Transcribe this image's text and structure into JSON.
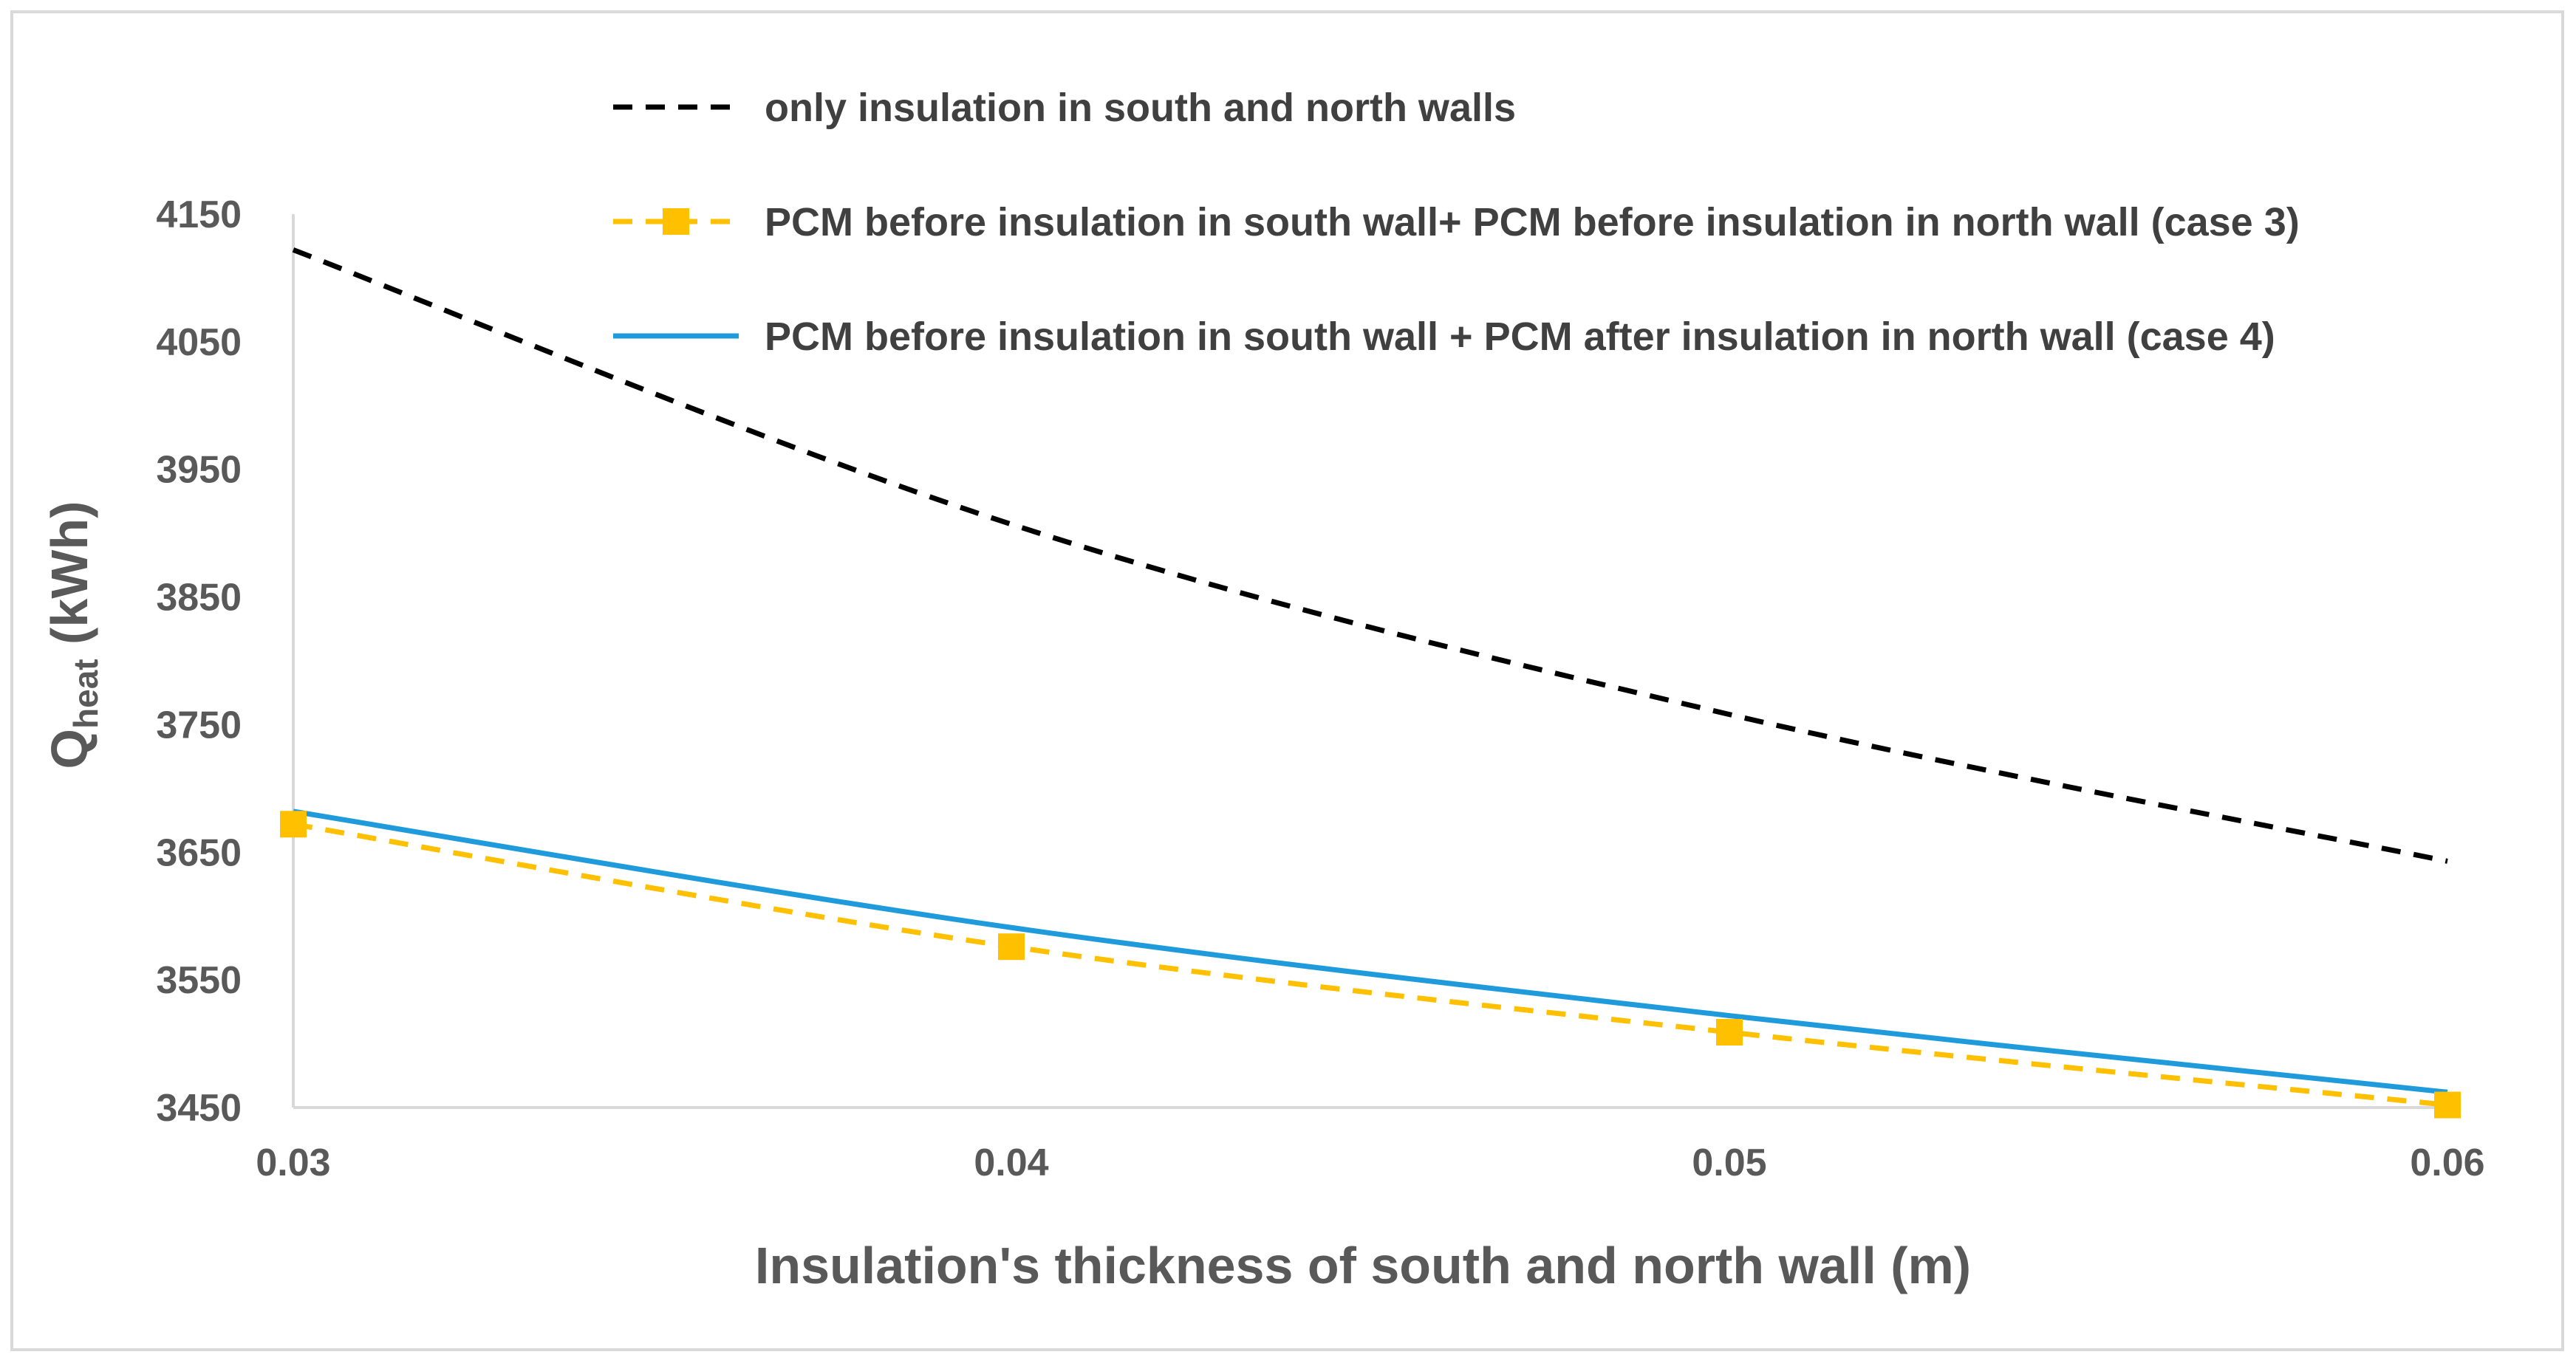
{
  "chart_data": {
    "type": "line",
    "title": "",
    "xlabel": "Insulation's thickness of south and north wall (m)",
    "ylabel_main": "Q",
    "ylabel_sub": "heat",
    "ylabel_unit": " (kWh)",
    "x": [
      0.03,
      0.04,
      0.05,
      0.06
    ],
    "x_tick_labels": [
      "0.03",
      "0.04",
      "0.05",
      "0.06"
    ],
    "xlim": [
      0.03,
      0.06
    ],
    "ylim": [
      3450,
      4150
    ],
    "y_ticks": [
      3450,
      3550,
      3650,
      3750,
      3850,
      3950,
      4050,
      4150
    ],
    "y_tick_labels": [
      "3450",
      "3550",
      "3650",
      "3750",
      "3850",
      "3950",
      "4050",
      "4150"
    ],
    "grid": false,
    "legend_position": "top",
    "series": [
      {
        "name": "only insulation in south and north walls",
        "values": [
          4122,
          3907,
          3758,
          3643
        ],
        "color": "#000000",
        "style": "dashed",
        "marker": "none"
      },
      {
        "name": "PCM before insulation in south wall+ PCM before insulation in north wall (case 3)",
        "values": [
          3672,
          3576,
          3509,
          3452
        ],
        "color": "#FFC000",
        "style": "dashed",
        "marker": "square"
      },
      {
        "name": "PCM before insulation in south wall + PCM after insulation in north wall (case 4)",
        "values": [
          3682,
          3591,
          3522,
          3462
        ],
        "color": "#1F9BDC",
        "style": "solid",
        "marker": "none"
      }
    ]
  }
}
